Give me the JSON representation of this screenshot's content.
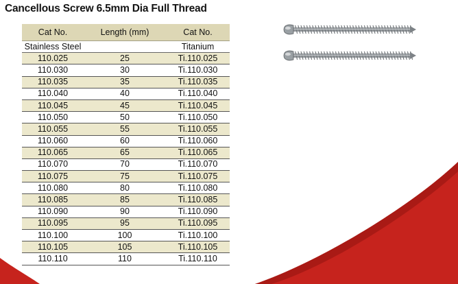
{
  "title": "Cancellous Screw 6.5mm Dia Full Thread",
  "table": {
    "headers": [
      "Cat No.",
      "Length (mm)",
      "Cat No."
    ],
    "materials": [
      "Stainless Steel",
      "",
      "Titanium"
    ],
    "rows": [
      {
        "ss": "110.025",
        "length": "25",
        "ti": "Ti.110.025"
      },
      {
        "ss": "110.030",
        "length": "30",
        "ti": "Ti.110.030"
      },
      {
        "ss": "110.035",
        "length": "35",
        "ti": "Ti.110.035"
      },
      {
        "ss": "110.040",
        "length": "40",
        "ti": "Ti.110.040"
      },
      {
        "ss": "110.045",
        "length": "45",
        "ti": "Ti.110.045"
      },
      {
        "ss": "110.050",
        "length": "50",
        "ti": "Ti.110.050"
      },
      {
        "ss": "110.055",
        "length": "55",
        "ti": "Ti.110.055"
      },
      {
        "ss": "110.060",
        "length": "60",
        "ti": "Ti.110.060"
      },
      {
        "ss": "110.065",
        "length": "65",
        "ti": "Ti.110.065"
      },
      {
        "ss": "110.070",
        "length": "70",
        "ti": "Ti.110.070"
      },
      {
        "ss": "110.075",
        "length": "75",
        "ti": "Ti.110.075"
      },
      {
        "ss": "110.080",
        "length": "80",
        "ti": "Ti.110.080"
      },
      {
        "ss": "110.085",
        "length": "85",
        "ti": "Ti.110.085"
      },
      {
        "ss": "110.090",
        "length": "90",
        "ti": "Ti.110.090"
      },
      {
        "ss": "110.095",
        "length": "95",
        "ti": "Ti.110.095"
      },
      {
        "ss": "110.100",
        "length": "100",
        "ti": "Ti.110.100"
      },
      {
        "ss": "110.105",
        "length": "105",
        "ti": "Ti.110.105"
      },
      {
        "ss": "110.110",
        "length": "110",
        "ti": "Ti.110.110"
      }
    ]
  },
  "colors": {
    "accent_red": "#c6231d",
    "header_fill": "#ddd7b5",
    "stripe_fill": "#ece8cc"
  },
  "images": [
    {
      "name": "screw-image-stainless",
      "icon": "screw-icon"
    },
    {
      "name": "screw-image-titanium",
      "icon": "screw-icon"
    }
  ]
}
